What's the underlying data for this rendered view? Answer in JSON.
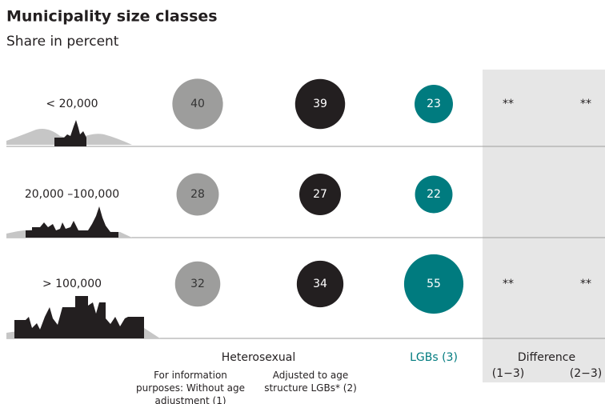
{
  "chart_data": {
    "type": "bubble",
    "title": "Municipality size classes",
    "subtitle": "Share in percent",
    "categories": [
      "< 20,000",
      "20,000 –100,000",
      "> 100,000"
    ],
    "group_label": "Heterosexual",
    "series": [
      {
        "name": "For information purposes: Without age adjustment (1)",
        "color": "#9d9d9c",
        "text_color": "#333333",
        "values": [
          40,
          28,
          32
        ]
      },
      {
        "name": "Adjusted to age structure LGBs* (2)",
        "color": "#231f20",
        "text_color": "#ffffff",
        "values": [
          39,
          27,
          34
        ]
      },
      {
        "name": "LGBs (3)",
        "color": "#007b7f",
        "text_color": "#ffffff",
        "values": [
          23,
          22,
          55
        ]
      }
    ],
    "difference": {
      "title": "Difference",
      "columns": [
        "(1−3)",
        "(2−3)"
      ],
      "rows": [
        [
          "**",
          "**"
        ],
        [
          null,
          null
        ],
        [
          "**",
          "**"
        ]
      ]
    }
  }
}
